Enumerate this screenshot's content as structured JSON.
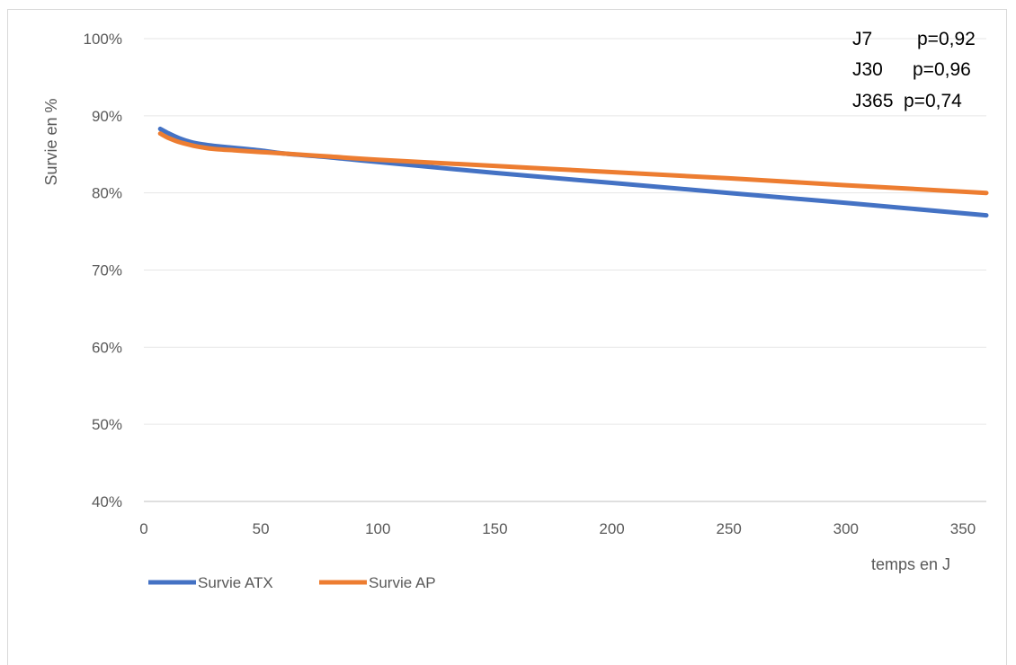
{
  "chart_data": {
    "type": "line",
    "xlabel": "temps en J",
    "ylabel": "Survie en %",
    "xlim": [
      0,
      360
    ],
    "ylim": [
      40,
      100
    ],
    "x_ticks": [
      "0",
      "50",
      "100",
      "150",
      "200",
      "250",
      "300",
      "350"
    ],
    "y_ticks": [
      "40%",
      "50%",
      "60%",
      "70%",
      "80%",
      "90%",
      "100%"
    ],
    "grid": "horizontal",
    "legend_position": "bottom-left",
    "series": [
      {
        "name": "Survie ATX",
        "color": "#4472c4",
        "x": [
          7,
          10,
          15,
          20,
          25,
          30,
          40,
          50,
          60,
          80,
          100,
          150,
          200,
          250,
          300,
          360
        ],
        "y": [
          88.3,
          87.8,
          87.1,
          86.6,
          86.3,
          86.1,
          85.8,
          85.5,
          85.1,
          84.6,
          84.0,
          82.6,
          81.3,
          80.0,
          78.7,
          77.1
        ]
      },
      {
        "name": "Survie AP",
        "color": "#ed7d31",
        "x": [
          7,
          10,
          15,
          20,
          25,
          30,
          40,
          50,
          60,
          80,
          100,
          150,
          200,
          250,
          300,
          360
        ],
        "y": [
          87.7,
          87.2,
          86.6,
          86.2,
          85.9,
          85.7,
          85.5,
          85.3,
          85.1,
          84.7,
          84.3,
          83.5,
          82.7,
          81.9,
          81.0,
          80.0
        ]
      }
    ],
    "annotations": [
      {
        "label": "J7",
        "value": "p=0,92"
      },
      {
        "label": "J30",
        "value": "p=0,96"
      },
      {
        "label": "J365",
        "value": "p=0,74"
      }
    ]
  }
}
